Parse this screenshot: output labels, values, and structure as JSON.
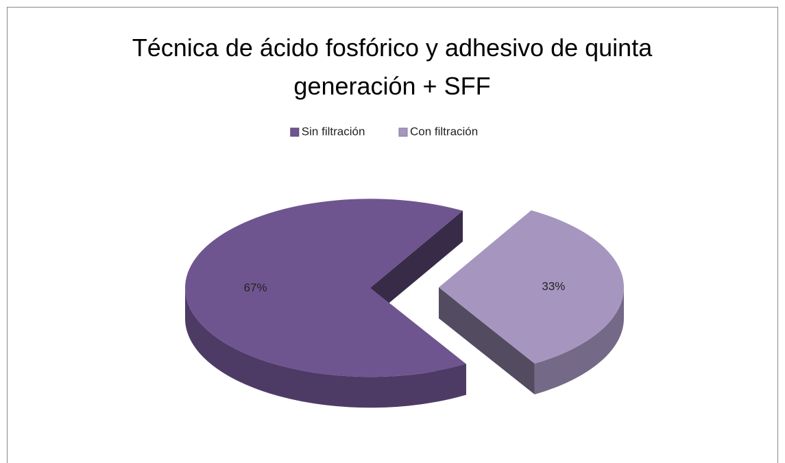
{
  "chart_data": {
    "type": "pie",
    "title": "Técnica de ácido fosfórico y adhesivo de quinta generación  + SFF",
    "categories": [
      "Sin filtración",
      "Con filtración"
    ],
    "values": [
      67,
      33
    ],
    "value_labels": [
      "67%",
      "33%"
    ],
    "colors": [
      "#6f5590",
      "#a696bf"
    ],
    "legend": "top"
  }
}
